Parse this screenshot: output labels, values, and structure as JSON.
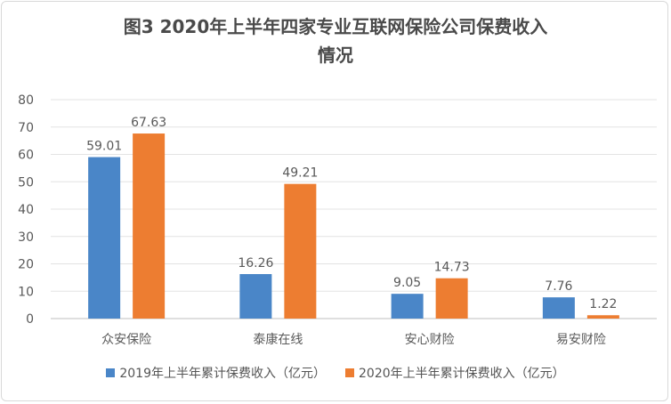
{
  "chart_data": {
    "type": "bar",
    "title": "图3 2020年上半年四家专业互联网保险公司保费收入情况",
    "title_line1": "图3 2020年上半年四家专业互联网保险公司保费收入",
    "title_line2": "情况",
    "categories": [
      "众安保险",
      "泰康在线",
      "安心财险",
      "易安财险"
    ],
    "series": [
      {
        "name": "2019年上半年累计保费收入（亿元）",
        "values": [
          59.01,
          16.26,
          9.05,
          7.76
        ],
        "color": "#4a86c8",
        "label_strings": [
          "59.01",
          "16.26",
          "9.05",
          "7.76"
        ]
      },
      {
        "name": "2020年上半年累计保费收入（亿元）",
        "values": [
          67.63,
          49.21,
          14.73,
          1.22
        ],
        "color": "#ed7d31",
        "label_strings": [
          "67.63",
          "49.21",
          "14.73",
          "1.22"
        ]
      }
    ],
    "yticks": [
      "0",
      "10",
      "20",
      "30",
      "40",
      "50",
      "60",
      "70",
      "80"
    ],
    "ylim": [
      0,
      80
    ],
    "grid": true,
    "legend_position": "bottom"
  }
}
